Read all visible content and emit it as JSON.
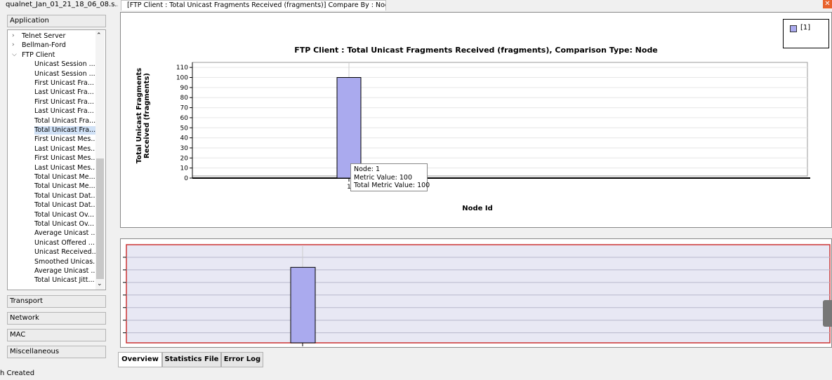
{
  "window": {
    "file_tab": "qualnet_Jan_01_21_18_06_08.s...",
    "compare_tab": "[FTP Client :  Total Unicast Fragments Received (fragments)] Compare By : Node ID",
    "close_glyph": "✕"
  },
  "left_panel": {
    "categories_top": [
      "Application"
    ],
    "tree": [
      {
        "label": "Telnet Server",
        "level": 0,
        "expander": "right"
      },
      {
        "label": "Bellman-Ford",
        "level": 0,
        "expander": "right"
      },
      {
        "label": "FTP Client",
        "level": 0,
        "expander": "down"
      },
      {
        "label": "Unicast Session ...",
        "level": 1
      },
      {
        "label": "Unicast Session ...",
        "level": 1
      },
      {
        "label": "First Unicast Fra...",
        "level": 1
      },
      {
        "label": "Last Unicast Fra...",
        "level": 1
      },
      {
        "label": "First Unicast Fra...",
        "level": 1
      },
      {
        "label": "Last Unicast Fra...",
        "level": 1
      },
      {
        "label": "Total Unicast Fra...",
        "level": 1
      },
      {
        "label": "Total Unicast Fra...",
        "level": 1,
        "selected": true
      },
      {
        "label": "First Unicast Mes...",
        "level": 1
      },
      {
        "label": "Last Unicast Mes...",
        "level": 1
      },
      {
        "label": "First Unicast Mes...",
        "level": 1
      },
      {
        "label": "Last Unicast Mes...",
        "level": 1
      },
      {
        "label": "Total Unicast Me...",
        "level": 1
      },
      {
        "label": "Total Unicast Me...",
        "level": 1
      },
      {
        "label": "Total Unicast Dat...",
        "level": 1
      },
      {
        "label": "Total Unicast Dat...",
        "level": 1
      },
      {
        "label": "Total Unicast Ov...",
        "level": 1
      },
      {
        "label": "Total Unicast Ov...",
        "level": 1
      },
      {
        "label": "Average Unicast ...",
        "level": 1
      },
      {
        "label": "Unicast Offered ...",
        "level": 1
      },
      {
        "label": "Unicast Received...",
        "level": 1
      },
      {
        "label": "Smoothed Unicas...",
        "level": 1
      },
      {
        "label": "Average Unicast ...",
        "level": 1
      },
      {
        "label": "Total Unicast Jitt...",
        "level": 1
      }
    ],
    "categories_bottom": [
      "Transport",
      "Network",
      "MAC",
      "Miscellaneous"
    ]
  },
  "chart_data": {
    "type": "bar",
    "title": "FTP Client :  Total Unicast Fragments Received (fragments), Comparison Type: Node",
    "xlabel": "Node Id",
    "ylabel_lines": [
      "Total Unicast Fragments",
      "Received (fragments)"
    ],
    "categories": [
      "1"
    ],
    "series": [
      {
        "name": "[1]",
        "values": [
          100
        ],
        "color": "#aaaaee"
      }
    ],
    "yticks": [
      "0",
      "10",
      "20",
      "30",
      "40",
      "50",
      "60",
      "70",
      "80",
      "90",
      "100",
      "110"
    ],
    "ylim": [
      0,
      110
    ],
    "legend_position": "top-right",
    "grid": "horizontal"
  },
  "tooltip": {
    "lines": [
      "Node: 1",
      "Metric Value: 100",
      "Total Metric Value: 100"
    ]
  },
  "overview": {
    "value": 100,
    "ymax": 130,
    "bar_color": "#aaaaee",
    "border_color": "#cc3333",
    "background": "#e8e8f4"
  },
  "bottom_tabs": [
    {
      "label": "Overview",
      "active": true
    },
    {
      "label": "Statistics File",
      "active": false
    },
    {
      "label": "Error Log",
      "active": false
    }
  ],
  "status_text": "h Created"
}
